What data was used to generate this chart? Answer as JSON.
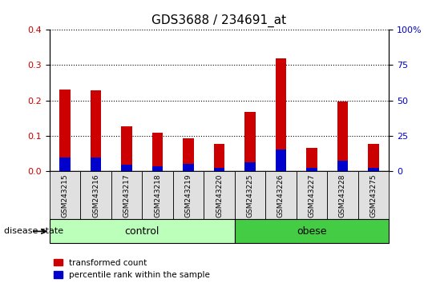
{
  "title": "GDS3688 / 234691_at",
  "samples": [
    "GSM243215",
    "GSM243216",
    "GSM243217",
    "GSM243218",
    "GSM243219",
    "GSM243220",
    "GSM243225",
    "GSM243226",
    "GSM243227",
    "GSM243228",
    "GSM243275"
  ],
  "red_values": [
    0.232,
    0.228,
    0.127,
    0.108,
    0.092,
    0.078,
    0.168,
    0.318,
    0.065,
    0.198,
    0.078
  ],
  "blue_values": [
    0.038,
    0.038,
    0.018,
    0.015,
    0.02,
    0.01,
    0.025,
    0.062,
    0.01,
    0.03,
    0.01
  ],
  "bar_width": 0.35,
  "ylim_left": [
    0,
    0.4
  ],
  "ylim_right": [
    0,
    100
  ],
  "yticks_left": [
    0,
    0.1,
    0.2,
    0.3,
    0.4
  ],
  "yticks_right": [
    0,
    25,
    50,
    75,
    100
  ],
  "ytick_labels_right": [
    "0",
    "25",
    "50",
    "75",
    "100%"
  ],
  "groups": [
    {
      "label": "control",
      "start": 0,
      "end": 5,
      "color": "#bbffbb"
    },
    {
      "label": "obese",
      "start": 6,
      "end": 10,
      "color": "#44cc44"
    }
  ],
  "disease_state_label": "disease state",
  "legend_red": "transformed count",
  "legend_blue": "percentile rank within the sample",
  "red_color": "#cc0000",
  "blue_color": "#0000cc",
  "title_fontsize": 11,
  "tick_color_left": "#cc0000",
  "tick_color_right": "#0000cc",
  "sample_box_color": "#e0e0e0",
  "plot_bg": "#ffffff"
}
